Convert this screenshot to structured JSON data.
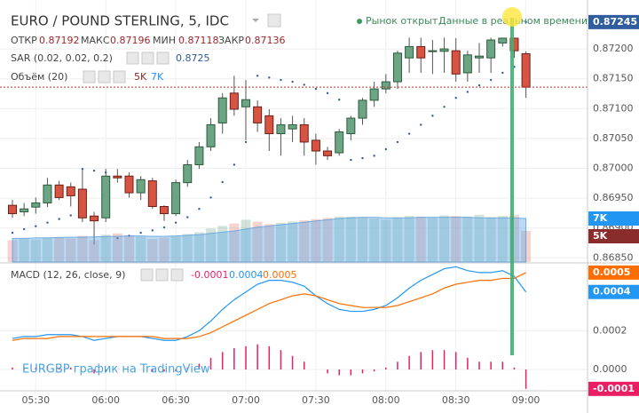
{
  "header": {
    "title": "EURO / POUND STERLING, 5, IDC",
    "ohlc_labels": [
      "ОТКР",
      "МАКС",
      "МИН",
      "ЗАКР"
    ],
    "status": "Рынок открыт",
    "status_detail": "Данные в реальном времени",
    "watermark": "EURGBP график на TradingView"
  },
  "chart_data": [
    {
      "type": "candlestick",
      "x": [
        "05:20",
        "05:25",
        "05:30",
        "05:35",
        "05:40",
        "05:45",
        "05:50",
        "05:55",
        "06:00",
        "06:05",
        "06:10",
        "06:15",
        "06:20",
        "06:25",
        "06:30",
        "06:35",
        "06:40",
        "06:45",
        "06:50",
        "06:55",
        "07:00",
        "07:05",
        "07:10",
        "07:15",
        "07:20",
        "07:25",
        "07:30",
        "07:35",
        "07:40",
        "07:45",
        "07:50",
        "07:55",
        "08:00",
        "08:05",
        "08:10",
        "08:15",
        "08:20",
        "08:25",
        "08:30",
        "08:35",
        "08:40",
        "08:45",
        "08:50",
        "08:55",
        "09:00"
      ],
      "open": [
        0.86938,
        0.86927,
        0.86935,
        0.86942,
        0.86972,
        0.86969,
        0.86965,
        0.8692,
        0.86917,
        0.86987,
        0.86987,
        0.86959,
        0.86979,
        0.86936,
        0.86924,
        0.86976,
        0.87006,
        0.87036,
        0.87076,
        0.87126,
        0.87103,
        0.87103,
        0.87088,
        0.87058,
        0.87066,
        0.87073,
        0.87047,
        0.87029,
        0.87026,
        0.87058,
        0.87084,
        0.87114,
        0.87133,
        0.87145,
        0.87185,
        0.87204,
        0.87196,
        0.87196,
        0.87197,
        0.8716,
        0.87185,
        0.87185,
        0.8721,
        0.87218,
        0.87192
      ],
      "high": [
        0.86947,
        0.86942,
        0.86951,
        0.86984,
        0.86979,
        0.86976,
        0.86999,
        0.86927,
        0.86999,
        0.86999,
        0.86993,
        0.86987,
        0.86984,
        0.86938,
        0.86981,
        0.87014,
        0.87044,
        0.87084,
        0.87126,
        0.87155,
        0.87148,
        0.87114,
        0.87099,
        0.87084,
        0.87088,
        0.87084,
        0.87058,
        0.87036,
        0.87066,
        0.87088,
        0.87118,
        0.87145,
        0.87158,
        0.87197,
        0.87219,
        0.87219,
        0.87215,
        0.87219,
        0.87218,
        0.87197,
        0.8721,
        0.87219,
        0.87219,
        0.87219,
        0.87196
      ],
      "low": [
        0.86917,
        0.8692,
        0.86924,
        0.86935,
        0.86947,
        0.86936,
        0.8691,
        0.86872,
        0.8691,
        0.86976,
        0.86951,
        0.86947,
        0.86932,
        0.86912,
        0.8692,
        0.86969,
        0.86999,
        0.87029,
        0.87058,
        0.87088,
        0.87047,
        0.87061,
        0.87029,
        0.87021,
        0.87044,
        0.87021,
        0.87006,
        0.87014,
        0.87021,
        0.87047,
        0.87073,
        0.87103,
        0.87126,
        0.87133,
        0.8716,
        0.8716,
        0.87158,
        0.8716,
        0.87145,
        0.87145,
        0.8716,
        0.8716,
        0.87204,
        0.87185,
        0.87118
      ],
      "close": [
        0.86924,
        0.86932,
        0.86942,
        0.86972,
        0.86951,
        0.86954,
        0.86917,
        0.86912,
        0.86987,
        0.86984,
        0.86959,
        0.86981,
        0.86936,
        0.86924,
        0.86976,
        0.87006,
        0.87036,
        0.87073,
        0.87118,
        0.87099,
        0.87115,
        0.87076,
        0.87058,
        0.87073,
        0.87073,
        0.87044,
        0.87029,
        0.87021,
        0.87061,
        0.87084,
        0.87114,
        0.87133,
        0.87145,
        0.87193,
        0.87204,
        0.87185,
        0.87197,
        0.872,
        0.87158,
        0.8719,
        0.87188,
        0.87215,
        0.87218,
        0.87197,
        0.87136
      ],
      "up_color": "#6ba583",
      "down_color": "#d75442",
      "ylim": [
        0.86843,
        0.87282
      ],
      "yticks": [
        {
          "value": 0.8685,
          "label": "0.86850"
        },
        {
          "value": 0.869,
          "label": "0.86900"
        },
        {
          "value": 0.8695,
          "label": "0.86950"
        },
        {
          "value": 0.87,
          "label": "0.87000"
        },
        {
          "value": 0.8705,
          "label": "0.87050"
        },
        {
          "value": 0.871,
          "label": "0.87100"
        },
        {
          "value": 0.8715,
          "label": "0.87150"
        },
        {
          "value": 0.872,
          "label": "0.87200"
        }
      ],
      "grid": true,
      "last_price_line": true,
      "sar": {
        "name": "SAR (0.02, 0.02, 0.2)",
        "color": "#2f5d9e",
        "last_label": "0.8725",
        "values": [
          0.86892,
          0.86898,
          0.86903,
          0.86909,
          0.86915,
          0.86921,
          0.86999,
          0.86996,
          0.86993,
          0.86883,
          0.86887,
          0.86892,
          0.86896,
          0.86901,
          0.86909,
          0.86918,
          0.86932,
          0.86951,
          0.86977,
          0.87006,
          0.87044,
          0.87155,
          0.87152,
          0.87148,
          0.87145,
          0.8714,
          0.87133,
          0.87126,
          0.87115,
          0.87014,
          0.87017,
          0.87021,
          0.87032,
          0.87044,
          0.87058,
          0.87073,
          0.87088,
          0.87103,
          0.87118,
          0.87128,
          0.87139,
          0.87148,
          0.8716,
          0.8717,
          0.87245
        ]
      }
    },
    {
      "type": "bar",
      "ylim": [
        0,
        20000
      ],
      "series": [
        {
          "name": "Объём (20)",
          "color": "#8b2c2c",
          "last_label": "5K",
          "values": [
            3500,
            3800,
            3600,
            3900,
            4000,
            3800,
            4200,
            3500,
            4400,
            4600,
            4300,
            4100,
            3700,
            3900,
            4200,
            4500,
            4800,
            5400,
            5800,
            6200,
            6800,
            6500,
            6100,
            6300,
            6500,
            6700,
            6900,
            7100,
            7300,
            7300,
            7200,
            7000,
            6800,
            7200,
            7400,
            7300,
            7100,
            7500,
            7400,
            7300,
            7600,
            7200,
            7400,
            7600,
            5000
          ]
        },
        {
          "color": "#2196f3",
          "last_label": "7K",
          "values": [
            3800,
            3800,
            3900,
            3900,
            3950,
            4000,
            4000,
            4050,
            4100,
            4150,
            4200,
            4200,
            4150,
            4150,
            4200,
            4300,
            4400,
            4600,
            4800,
            5000,
            5300,
            5600,
            5800,
            6000,
            6200,
            6400,
            6600,
            6800,
            7000,
            7100,
            7200,
            7200,
            7100,
            7100,
            7100,
            7200,
            7200,
            7200,
            7200,
            7200,
            7100,
            7100,
            7100,
            7100,
            7000
          ]
        }
      ]
    },
    {
      "type": "macd",
      "title": "MACD (12, 26, close, 9)",
      "ylim": [
        -0.00011,
        0.00055
      ],
      "yticks": [
        0.0002,
        {
          "value": 0,
          "label": "0.0000"
        }
      ],
      "series": [
        {
          "color": "#e91e63",
          "values": [
            1e-05,
            1e-05,
            1e-05,
            2e-05,
            1e-05,
            1e-05,
            0,
            -2e-05,
            -1e-05,
            0,
            0,
            0,
            -1e-05,
            -1e-05,
            -1e-05,
            1e-05,
            3e-05,
            6e-05,
            9e-05,
            0.00011,
            0.00012,
            0.00013,
            0.00012,
            0.0001,
            7e-05,
            4e-05,
            0,
            -2e-05,
            -3e-05,
            -3e-05,
            -2e-05,
            -1e-05,
            1e-05,
            4e-05,
            7e-05,
            9e-05,
            0.0001,
            0.0001,
            9e-05,
            6e-05,
            4e-05,
            4e-05,
            4e-05,
            1e-05,
            -0.0001
          ]
        },
        {
          "color": "#2196f3",
          "values": [
            0.00016,
            0.00017,
            0.00017,
            0.00018,
            0.00018,
            0.00018,
            0.00017,
            0.00015,
            0.00016,
            0.00017,
            0.00017,
            0.00017,
            0.00016,
            0.00015,
            0.00015,
            0.00017,
            0.0002,
            0.00025,
            0.00031,
            0.00036,
            0.0004,
            0.00044,
            0.00046,
            0.00046,
            0.00045,
            0.00043,
            0.00038,
            0.00034,
            0.00031,
            0.0003,
            0.0003,
            0.00031,
            0.00033,
            0.00037,
            0.00042,
            0.00046,
            0.00049,
            0.00052,
            0.00053,
            0.00051,
            0.0005,
            0.0005,
            0.00051,
            0.00048,
            0.0004
          ]
        },
        {
          "color": "#ff6d00",
          "values": [
            0.00015,
            0.00016,
            0.00016,
            0.00016,
            0.00017,
            0.00017,
            0.00017,
            0.00017,
            0.00017,
            0.00017,
            0.00017,
            0.00017,
            0.00017,
            0.00016,
            0.00016,
            0.00016,
            0.00017,
            0.00019,
            0.00022,
            0.00025,
            0.00028,
            0.00031,
            0.00034,
            0.00036,
            0.00038,
            0.00039,
            0.00038,
            0.00036,
            0.00034,
            0.00033,
            0.00032,
            0.00032,
            0.00032,
            0.00033,
            0.00035,
            0.00037,
            0.00039,
            0.00042,
            0.00044,
            0.00045,
            0.00046,
            0.00046,
            0.00047,
            0.00047,
            0.0005
          ]
        }
      ]
    }
  ]
}
